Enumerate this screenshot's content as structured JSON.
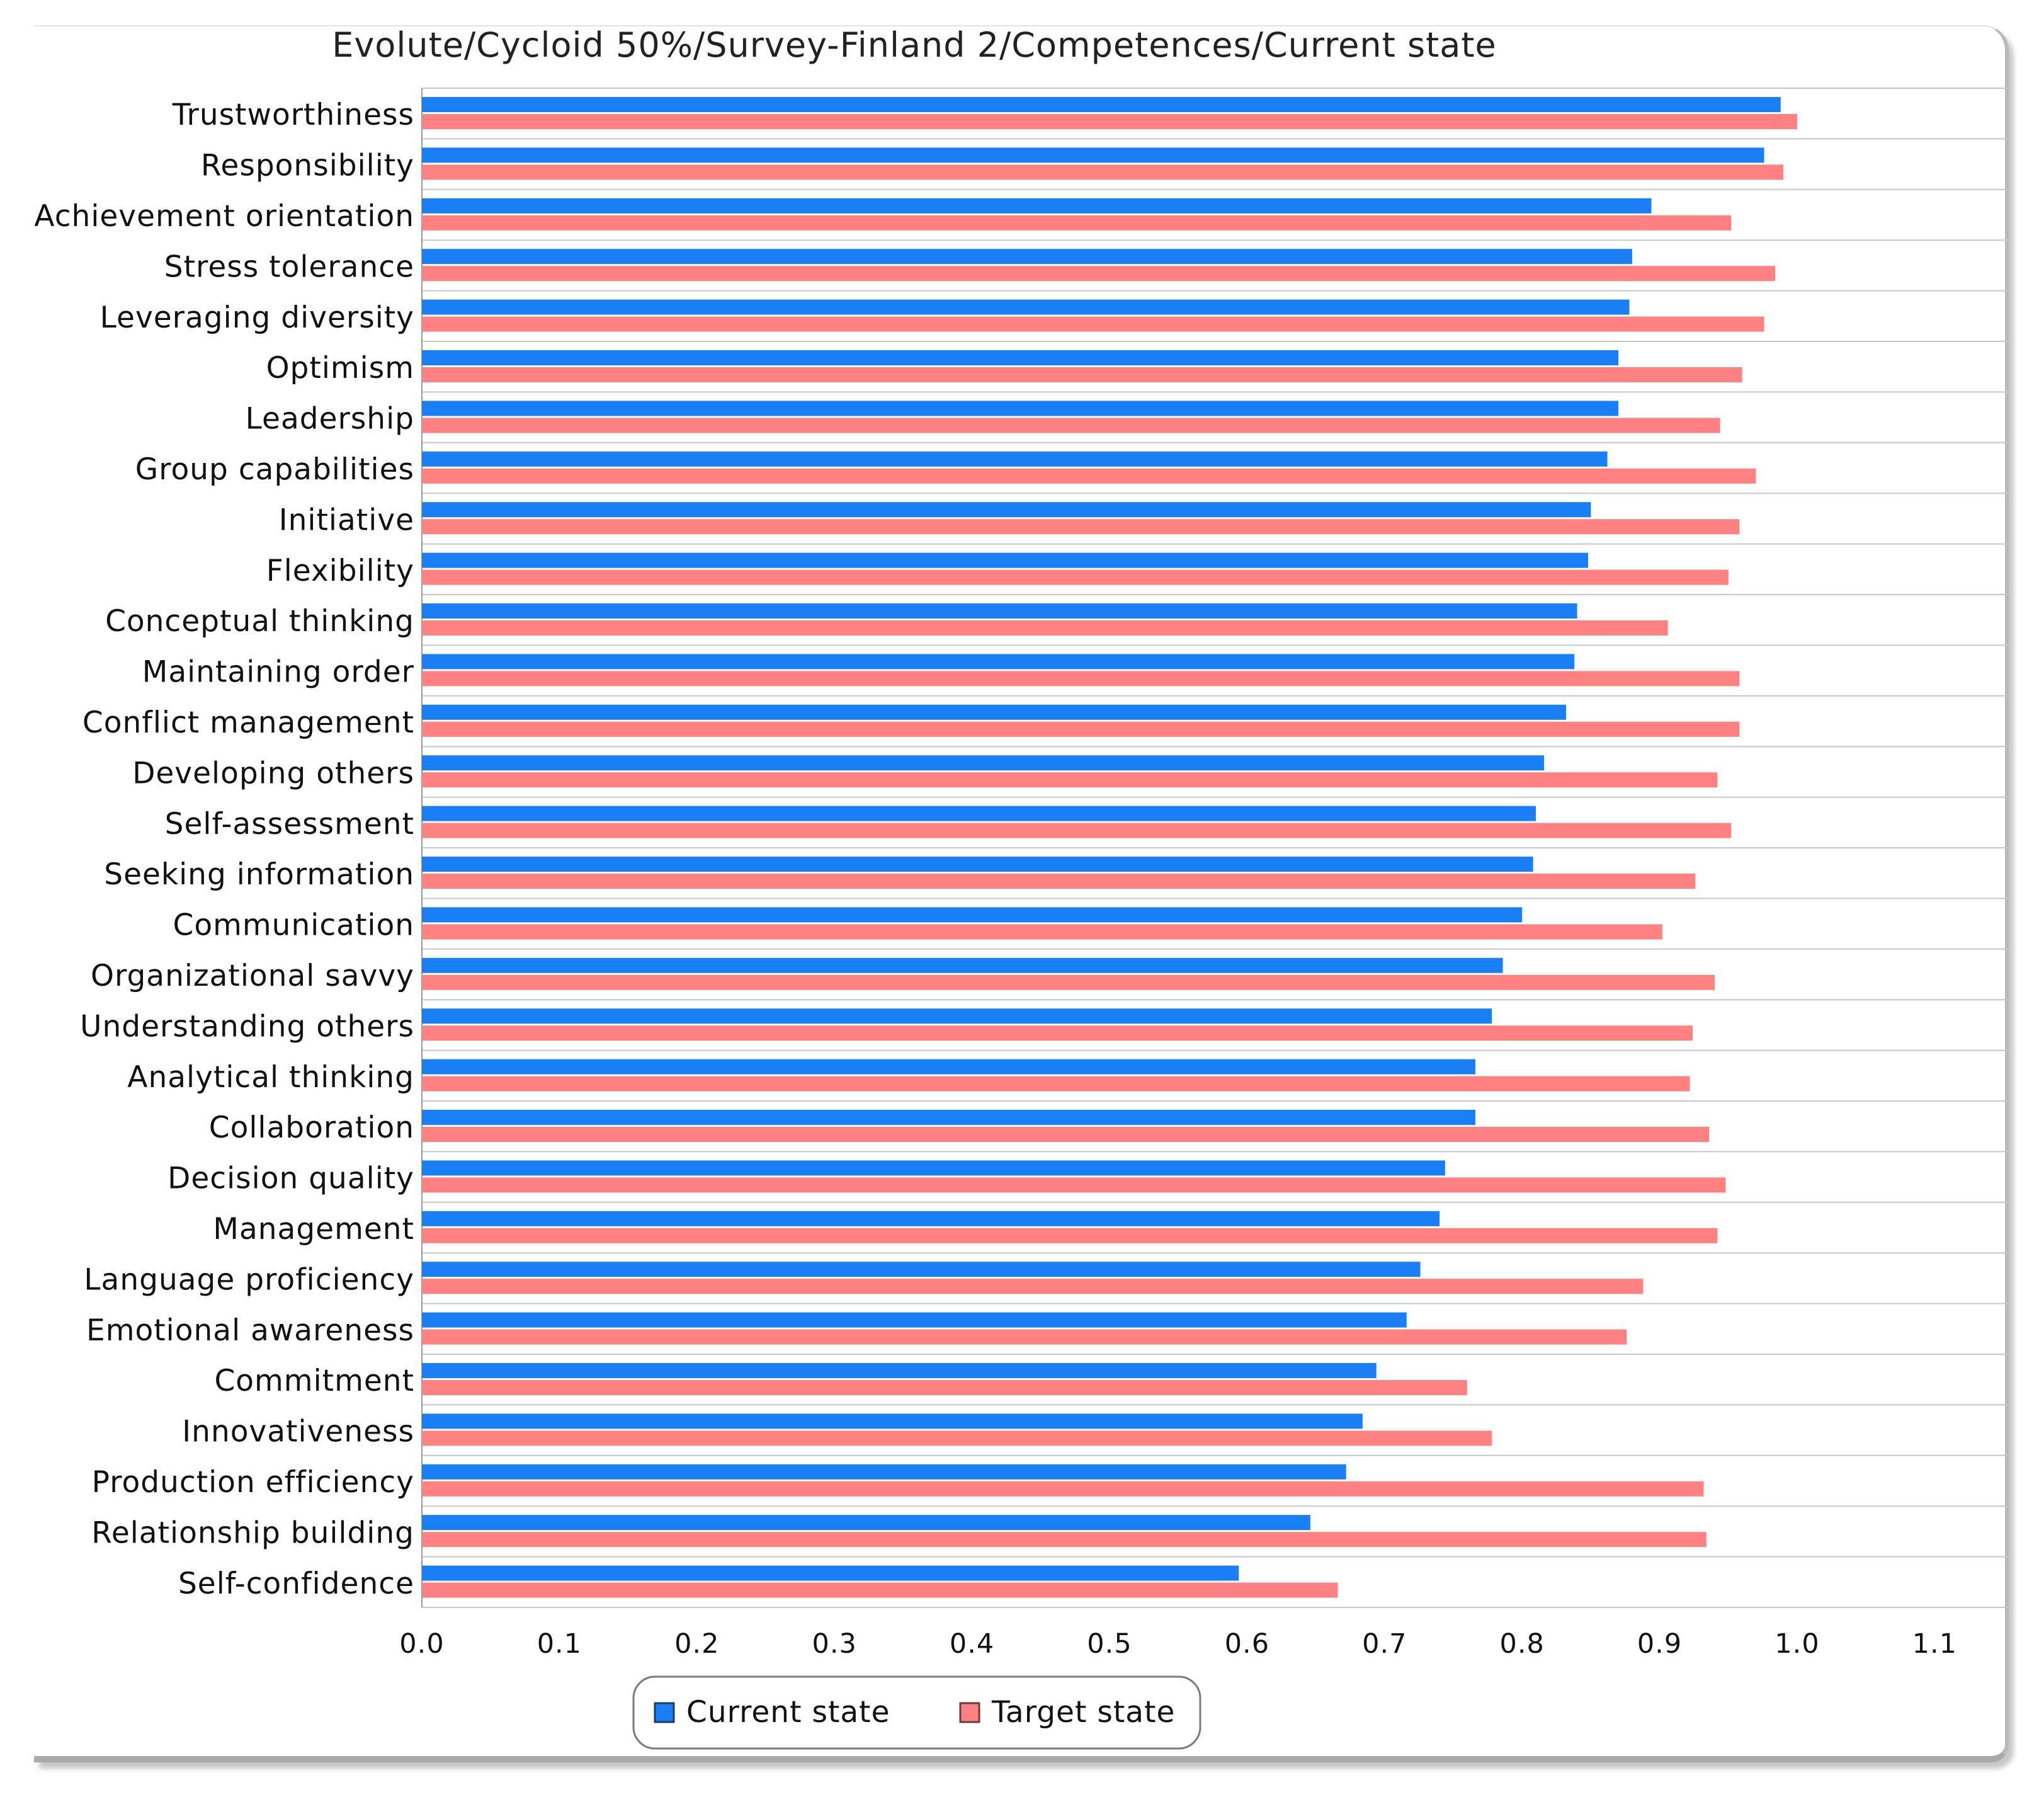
{
  "chart_data": {
    "type": "bar",
    "orientation": "horizontal",
    "title": "Evolute/Cycloid 50%/Survey-Finland 2/Competences/Current state",
    "xlim": [
      0,
      1.1
    ],
    "x_ticks": [
      "0.0",
      "0.1",
      "0.2",
      "0.3",
      "0.4",
      "0.5",
      "0.6",
      "0.7",
      "0.8",
      "0.9",
      "1.0",
      "1.1"
    ],
    "grid": true,
    "legend_position": "bottom-center",
    "categories": [
      "Trustworthiness",
      "Responsibility",
      "Achievement orientation",
      "Stress tolerance",
      "Leveraging diversity",
      "Optimism",
      "Leadership",
      "Group capabilities",
      "Initiative",
      "Flexibility",
      "Conceptual thinking",
      "Maintaining order",
      "Conflict management",
      "Developing others",
      "Self-assessment",
      "Seeking information",
      "Communication",
      "Organizational savvy",
      "Understanding others",
      "Analytical thinking",
      "Collaboration",
      "Decision quality",
      "Management",
      "Language proficiency",
      "Emotional awareness",
      "Commitment",
      "Innovativeness",
      "Production efficiency",
      "Relationship building",
      "Self-confidence"
    ],
    "series": [
      {
        "name": "Current state",
        "color": "#1a7ff5",
        "values": [
          0.988,
          0.976,
          0.894,
          0.88,
          0.878,
          0.87,
          0.87,
          0.862,
          0.85,
          0.848,
          0.84,
          0.838,
          0.832,
          0.816,
          0.81,
          0.808,
          0.8,
          0.786,
          0.778,
          0.766,
          0.766,
          0.744,
          0.74,
          0.726,
          0.716,
          0.694,
          0.684,
          0.672,
          0.646,
          0.594
        ]
      },
      {
        "name": "Target state",
        "color": "#ff8181",
        "values": [
          1.0,
          0.99,
          0.952,
          0.984,
          0.976,
          0.96,
          0.944,
          0.97,
          0.958,
          0.95,
          0.906,
          0.958,
          0.958,
          0.942,
          0.952,
          0.926,
          0.902,
          0.94,
          0.924,
          0.922,
          0.936,
          0.948,
          0.942,
          0.888,
          0.876,
          0.76,
          0.778,
          0.932,
          0.934,
          0.666
        ]
      }
    ]
  }
}
